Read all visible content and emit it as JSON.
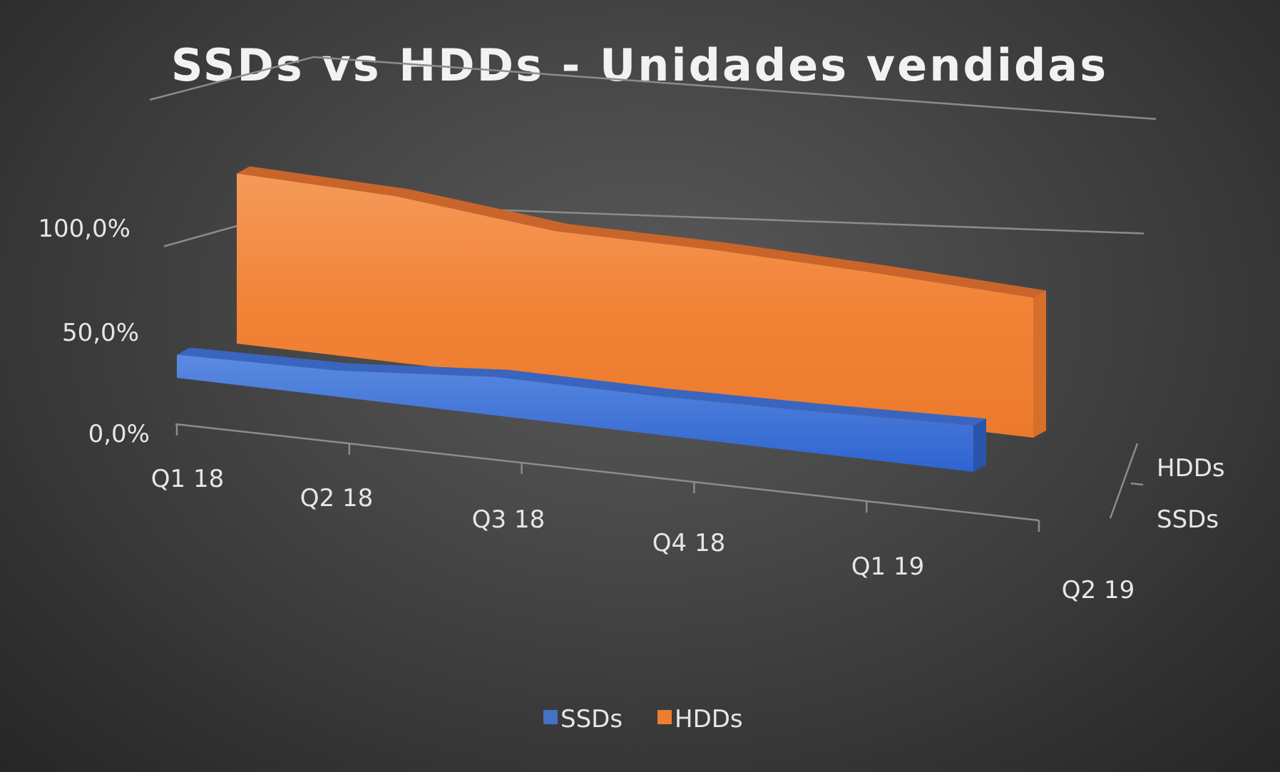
{
  "chart_data": {
    "type": "area",
    "title": "SSDs vs HDDs - Unidades vendidas",
    "categories": [
      "Q1 18",
      "Q2 18",
      "Q3 18",
      "Q4 18",
      "Q1 19",
      "Q2 19"
    ],
    "series": [
      {
        "name": "SSDs",
        "color": "#4472c4",
        "values": [
          15,
          17,
          25,
          25,
          27,
          30
        ]
      },
      {
        "name": "HDDs",
        "color": "#ed7d31",
        "values": [
          85,
          83,
          75,
          75,
          73,
          70
        ]
      }
    ],
    "ylim": [
      0,
      100
    ],
    "yticks": [
      "0,0%",
      "50,0%",
      "100,0%"
    ],
    "depth_labels": [
      "SSDs",
      "HDDs"
    ],
    "legend": [
      "SSDs",
      "HDDs"
    ],
    "legend_position": "bottom",
    "grid": true,
    "style": "3d"
  }
}
